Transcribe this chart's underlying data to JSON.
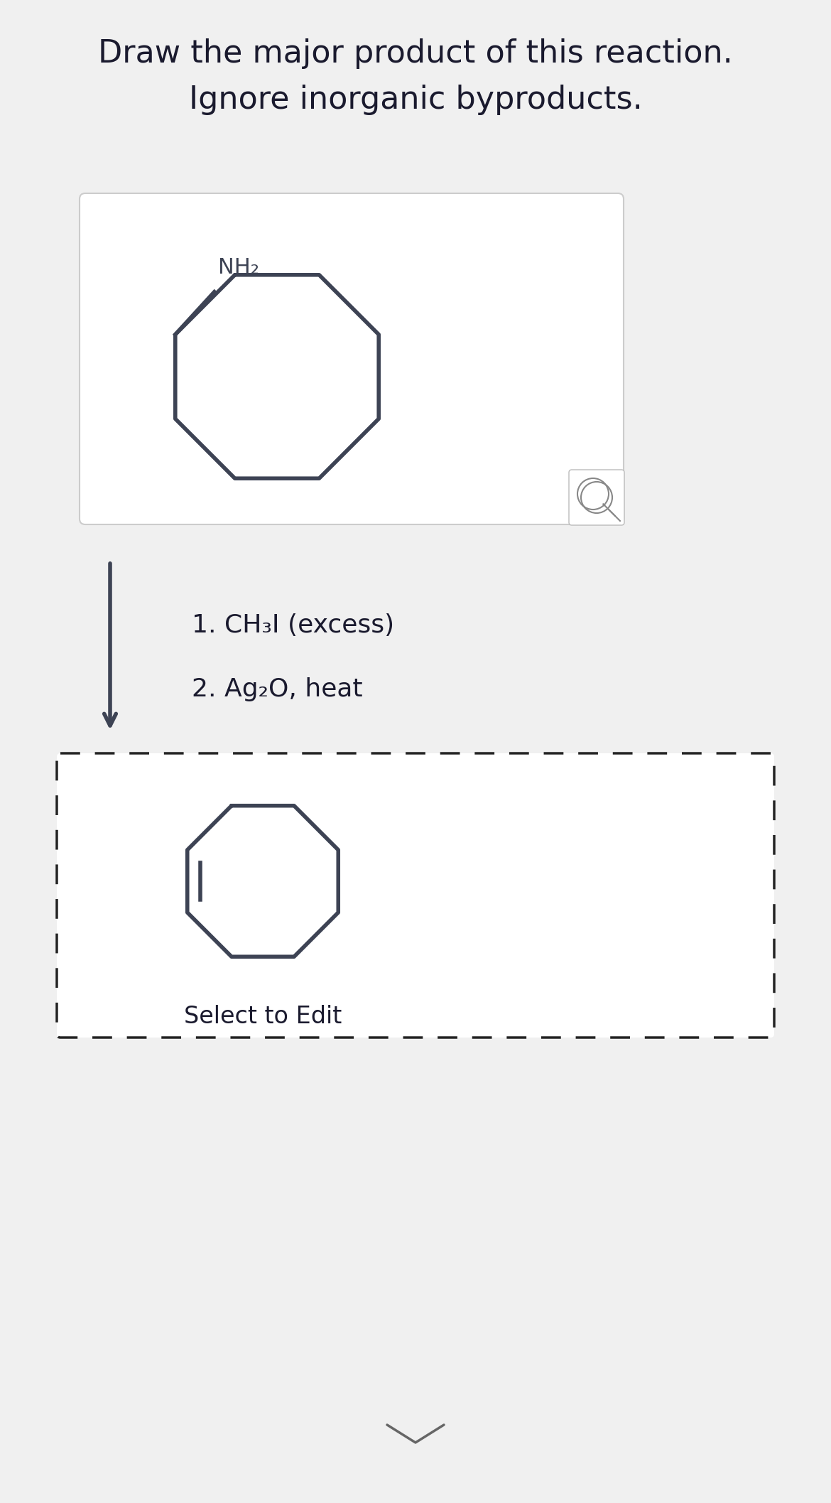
{
  "title_line1": "Draw the major product of this reaction.",
  "title_line2": "Ignore inorganic byproducts.",
  "title_fontsize": 32,
  "title_color": "#1a1a2e",
  "bg_color": "#f0f0f0",
  "white": "#ffffff",
  "mol_color": "#3d4354",
  "reagent_line1": "1. CH₃I (excess)",
  "reagent_line2": "2. Ag₂O, heat",
  "reagent_fontsize": 26,
  "select_text": "Select to Edit",
  "select_fontsize": 24,
  "nh2_label": "NH₂"
}
